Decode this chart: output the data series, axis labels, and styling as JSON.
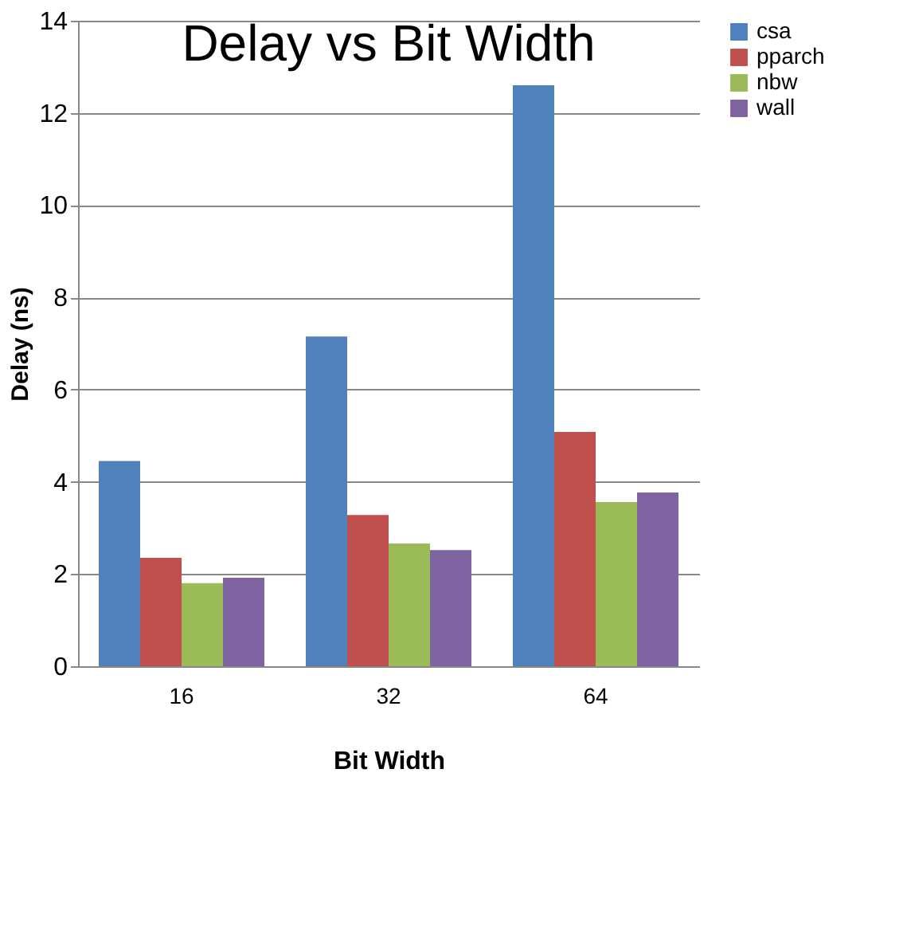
{
  "chart_data": {
    "type": "bar",
    "title": "Delay vs Bit Width",
    "xlabel": "Bit Width",
    "ylabel": "Delay (ns)",
    "categories": [
      "16",
      "32",
      "64"
    ],
    "series": [
      {
        "name": "csa",
        "color": "#4f81bd",
        "values": [
          4.45,
          7.15,
          12.6
        ]
      },
      {
        "name": "pparch",
        "color": "#c0504d",
        "values": [
          2.35,
          3.28,
          5.08
        ]
      },
      {
        "name": "nbw",
        "color": "#9bbb59",
        "values": [
          1.8,
          2.66,
          3.56
        ]
      },
      {
        "name": "wall",
        "color": "#8064a2",
        "values": [
          1.92,
          2.52,
          3.77
        ]
      }
    ],
    "ylim": [
      0,
      14
    ],
    "yticks": [
      0,
      2,
      4,
      6,
      8,
      10,
      12,
      14
    ],
    "grid": "y",
    "legend": "right"
  }
}
